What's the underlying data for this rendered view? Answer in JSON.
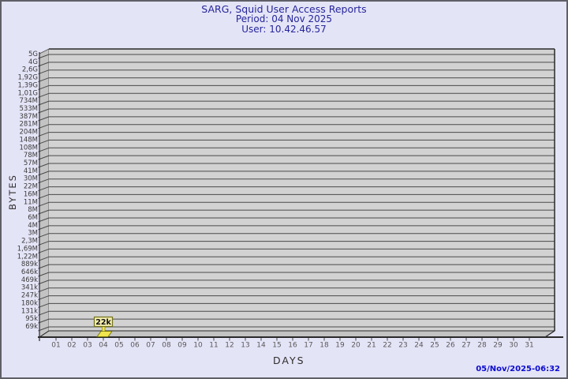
{
  "header": {
    "title": "SARG, Squid User Access Reports",
    "period": "Period: 04 Nov 2025",
    "user": "User: 10.42.46.57"
  },
  "footer": {
    "generated": "05/Nov/2025-06:32"
  },
  "chart_data": {
    "type": "bar",
    "title": "SARG, Squid User Access Reports",
    "subtitle": "Period: 04 Nov 2025",
    "user": "User: 10.42.46.57",
    "xlabel": "DAYS",
    "ylabel": "BYTES",
    "y_scale": "logarithmic",
    "grid": true,
    "x_ticks": [
      "01",
      "02",
      "03",
      "04",
      "05",
      "06",
      "07",
      "08",
      "09",
      "10",
      "11",
      "12",
      "13",
      "14",
      "15",
      "16",
      "17",
      "18",
      "19",
      "20",
      "21",
      "22",
      "23",
      "24",
      "25",
      "26",
      "27",
      "28",
      "29",
      "30",
      "31"
    ],
    "y_ticks_top_to_bottom": [
      "5G",
      "4G",
      "2,6G",
      "1,92G",
      "1,39G",
      "1,01G",
      "734M",
      "533M",
      "387M",
      "281M",
      "204M",
      "148M",
      "108M",
      "78M",
      "57M",
      "41M",
      "30M",
      "22M",
      "16M",
      "11M",
      "8M",
      "6M",
      "4M",
      "3M",
      "2,3M",
      "1,69M",
      "1,22M",
      "889k",
      "646k",
      "469k",
      "341k",
      "247k",
      "180k",
      "131k",
      "95k",
      "69k"
    ],
    "bars": [
      {
        "x": "04",
        "label": "22k",
        "approx_bytes": 22000
      }
    ],
    "colors": {
      "page_bg": "#e4e4f7",
      "plot_bg": "#d2d2d2",
      "wall": "#c3c3c3",
      "grid_line": "#4a4a4a",
      "axis_line": "#2a2a2a",
      "tick_text": "#3a3a3a",
      "bar_fill": "#efe44c",
      "bar_edge": "#6b6b00",
      "bar_label_bg": "#f3edae",
      "bar_label_border": "#73731c",
      "title_text": "#26269b",
      "stamp_text": "#0b0bd0"
    }
  }
}
